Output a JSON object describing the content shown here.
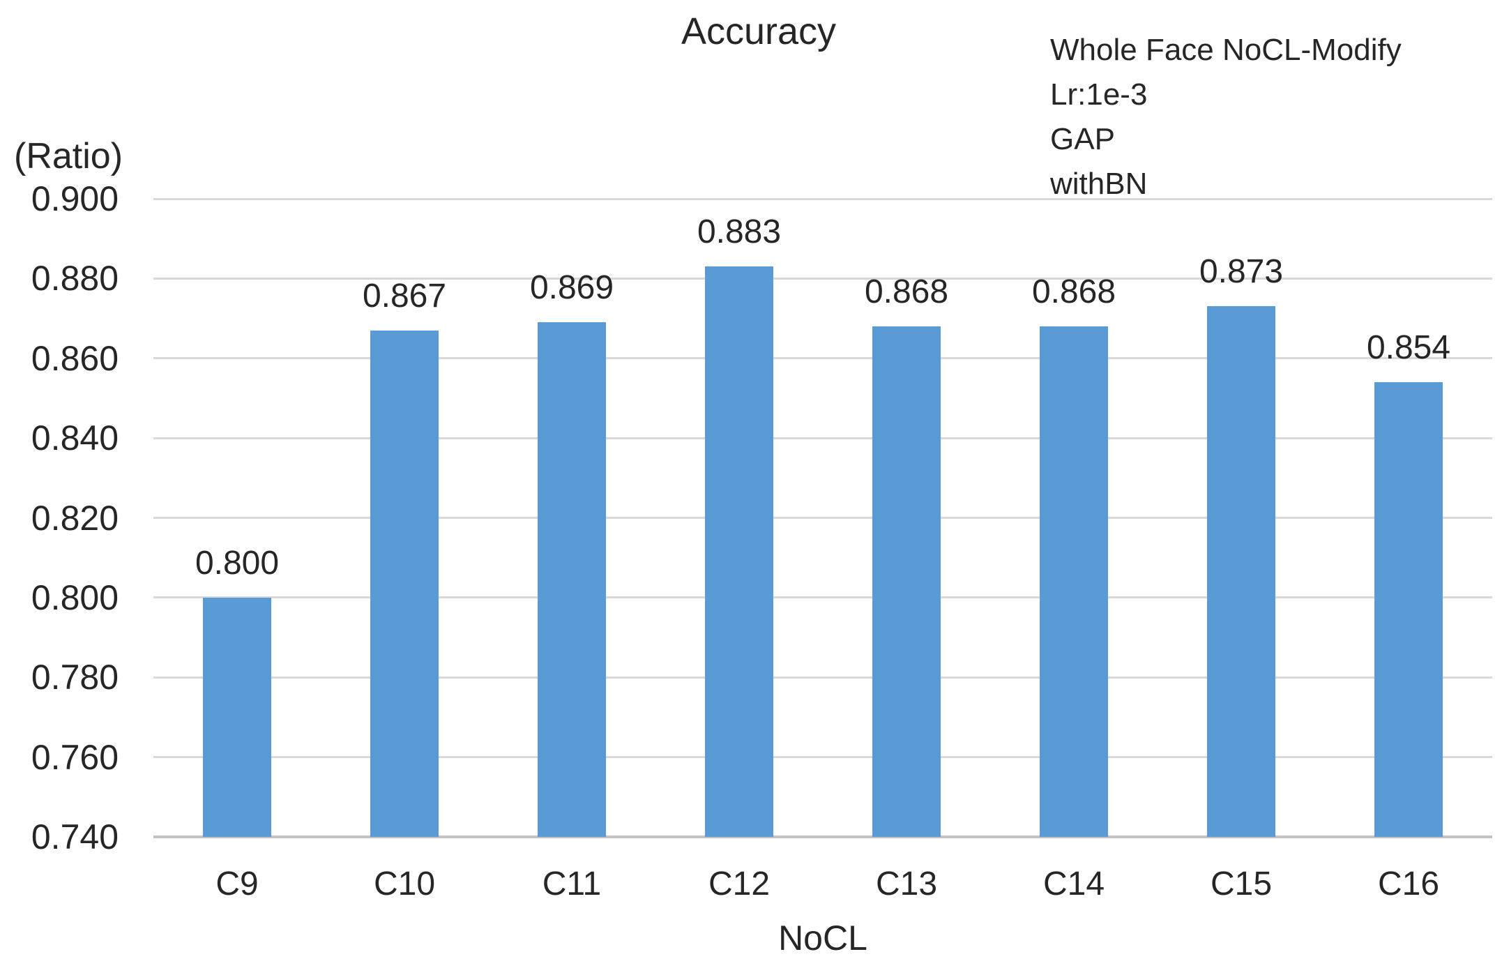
{
  "chart_data": {
    "type": "bar",
    "title": "Accuracy",
    "xlabel": "NoCL",
    "ylabel": "(Ratio)",
    "categories": [
      "C9",
      "C10",
      "C11",
      "C12",
      "C13",
      "C14",
      "C15",
      "C16"
    ],
    "values": [
      0.8,
      0.867,
      0.869,
      0.883,
      0.868,
      0.868,
      0.873,
      0.854
    ],
    "data_labels": [
      "0.800",
      "0.867",
      "0.869",
      "0.883",
      "0.868",
      "0.868",
      "0.873",
      "0.854"
    ],
    "ytick_labels": [
      "0.900",
      "0.880",
      "0.860",
      "0.840",
      "0.820",
      "0.800",
      "0.780",
      "0.760",
      "0.740"
    ],
    "ylim": [
      0.74,
      0.9
    ],
    "ytick_step": 0.02,
    "grid": true,
    "legend": false,
    "annotation_lines": [
      "Whole Face NoCL-Modify",
      "Lr:1e-3",
      "GAP",
      "withBN"
    ],
    "colors": {
      "bar": "#5b9bd5",
      "gridline": "#d9d9d9",
      "axis_line": "#c3c3c3",
      "text": "#262626",
      "background": "#ffffff"
    }
  }
}
